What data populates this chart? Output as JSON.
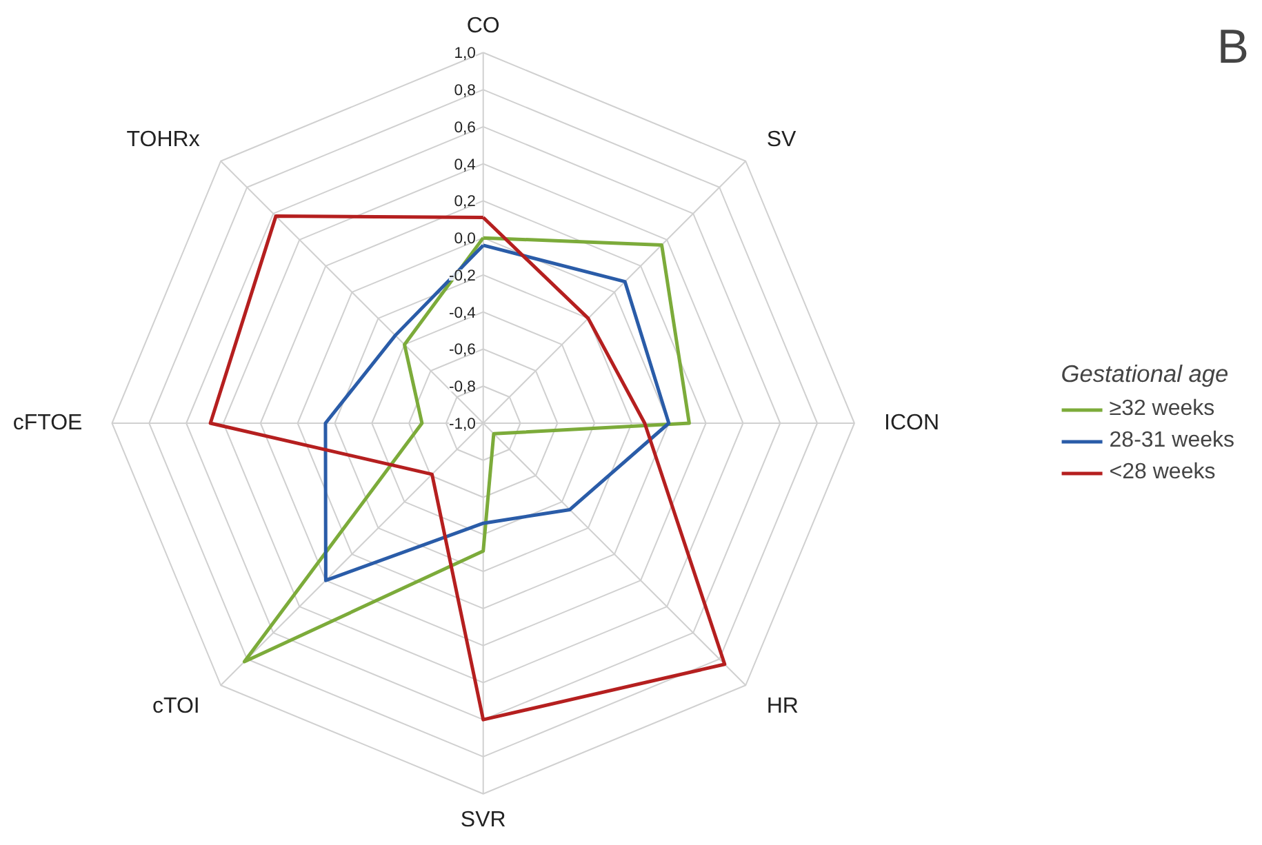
{
  "chart_data": {
    "type": "radar",
    "categories": [
      "CO",
      "SV",
      "ICON",
      "HR",
      "SVR",
      "cTOI",
      "cFTOE",
      "TOHRx"
    ],
    "series": [
      {
        "name": "≥32 weeks",
        "color": "#7cab3a",
        "values": [
          0.0,
          0.36,
          0.11,
          -0.92,
          -0.31,
          0.82,
          -0.67,
          -0.4
        ]
      },
      {
        "name": "28-31 weeks",
        "color": "#2a5ca8",
        "values": [
          -0.04,
          0.08,
          0.0,
          -0.34,
          -0.46,
          0.2,
          -0.15,
          -0.33
        ]
      },
      {
        "name": "<28 weeks",
        "color": "#b51f1f",
        "values": [
          0.11,
          -0.2,
          -0.13,
          0.84,
          0.6,
          -0.61,
          0.47,
          0.58
        ]
      }
    ],
    "ylim": [
      -1.0,
      1.0
    ],
    "yticks": [
      {
        "value": -1.0,
        "label": "-1,0"
      },
      {
        "value": -0.8,
        "label": "-0,8"
      },
      {
        "value": -0.6,
        "label": "-0,6"
      },
      {
        "value": -0.4,
        "label": "-0,4"
      },
      {
        "value": -0.2,
        "label": "-0,2"
      },
      {
        "value": 0.0,
        "label": "0,0"
      },
      {
        "value": 0.2,
        "label": "0,2"
      },
      {
        "value": 0.4,
        "label": "0,4"
      },
      {
        "value": 0.6,
        "label": "0,6"
      },
      {
        "value": 0.8,
        "label": "0,8"
      },
      {
        "value": 1.0,
        "label": "1,0"
      }
    ],
    "grid": true,
    "legend": "right",
    "legend_title": "Gestational age",
    "annotations": [
      "B"
    ]
  }
}
